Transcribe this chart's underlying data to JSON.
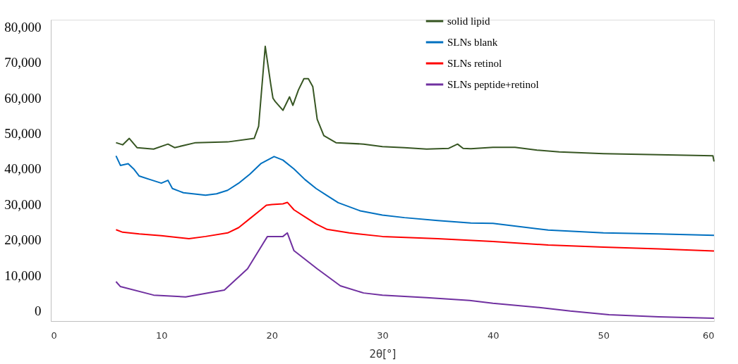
{
  "chart_data": {
    "type": "line",
    "xlabel": "2θ[°]",
    "xlim": [
      0,
      60
    ],
    "xticks": [
      0,
      10,
      20,
      30,
      40,
      50,
      60
    ],
    "ylim": [
      -2800,
      82000
    ],
    "yticks": [
      {
        "value": 0,
        "label": "0"
      },
      {
        "value": 10000,
        "label": "10,000"
      },
      {
        "value": 20000,
        "label": "20,000"
      },
      {
        "value": 30000,
        "label": "30,000"
      },
      {
        "value": 40000,
        "label": "40,000"
      },
      {
        "value": 50000,
        "label": "50,000"
      },
      {
        "value": 60000,
        "label": "60,000"
      },
      {
        "value": 70000,
        "label": "70,000"
      },
      {
        "value": 80000,
        "label": "80,000"
      }
    ],
    "grid": false,
    "legend": "top right",
    "marker": "none",
    "line_style": "solid",
    "series": [
      {
        "name": "solid lipid",
        "color": "#375623",
        "x": [
          5.9,
          6.5,
          7.1,
          7.8,
          9.3,
          10.6,
          11.2,
          13.1,
          16,
          18.4,
          18.8,
          19.2,
          19.4,
          19.9,
          20.1,
          20.3,
          21,
          21.6,
          21.9,
          22.4,
          22.9,
          23.3,
          23.7,
          24.1,
          24.7,
          25.8,
          28.3,
          30,
          32,
          34,
          36,
          36.8,
          37.3,
          38,
          40,
          42,
          44,
          46,
          50,
          55,
          59.9,
          60
        ],
        "values": [
          47400,
          46800,
          48600,
          46000,
          45600,
          47000,
          46000,
          47400,
          47600,
          48600,
          52000,
          67000,
          74500,
          63800,
          59900,
          59000,
          56500,
          60300,
          57900,
          62200,
          65400,
          65400,
          63200,
          54000,
          49400,
          47400,
          47000,
          46300,
          46000,
          45600,
          45800,
          47000,
          45800,
          45700,
          46100,
          46100,
          45300,
          44800,
          44300,
          44000,
          43700,
          42100
        ]
      },
      {
        "name": "SLNs blank",
        "color": "#0070c0",
        "x": [
          5.9,
          6.3,
          7,
          7.5,
          8,
          9,
          10,
          10.6,
          11,
          12,
          14,
          15,
          16,
          17,
          18,
          19,
          20.2,
          21,
          22,
          23,
          24,
          25,
          26,
          28,
          30,
          32,
          35,
          38,
          40,
          45,
          50,
          55,
          60
        ],
        "values": [
          43700,
          41000,
          41500,
          40000,
          38000,
          37000,
          36000,
          36800,
          34500,
          33300,
          32600,
          33000,
          34000,
          36000,
          38500,
          41500,
          43500,
          42500,
          40000,
          37000,
          34500,
          32500,
          30500,
          28200,
          27000,
          26300,
          25500,
          24800,
          24700,
          22800,
          22000,
          21700,
          21300
        ]
      },
      {
        "name": "SLNs retinol",
        "color": "#ff0000",
        "x": [
          5.9,
          6.5,
          8,
          10,
          12.5,
          14,
          16,
          17,
          18,
          19,
          19.5,
          20,
          21,
          21.4,
          22,
          23,
          24,
          25,
          27,
          30,
          35,
          40,
          45,
          50,
          55,
          60
        ],
        "values": [
          22900,
          22200,
          21700,
          21200,
          20400,
          21000,
          22000,
          23500,
          26000,
          28500,
          29800,
          30000,
          30200,
          30600,
          28500,
          26500,
          24500,
          23000,
          22000,
          21000,
          20400,
          19600,
          18600,
          18000,
          17500,
          16900
        ]
      },
      {
        "name": "SLNs peptide+retinol",
        "color": "#7030a0",
        "x": [
          5.9,
          6.3,
          9.3,
          12.2,
          15.7,
          17.8,
          19.2,
          19.6,
          21,
          21.4,
          22,
          24.1,
          26.2,
          28.3,
          30,
          34,
          37.9,
          40,
          44.2,
          47,
          50.5,
          55,
          60
        ],
        "values": [
          8300,
          6900,
          4500,
          4000,
          5900,
          11900,
          19000,
          21000,
          21000,
          22000,
          17000,
          11900,
          7100,
          5100,
          4500,
          3800,
          3000,
          2200,
          1000,
          0,
          -1000,
          -1600,
          -2000
        ]
      }
    ]
  }
}
